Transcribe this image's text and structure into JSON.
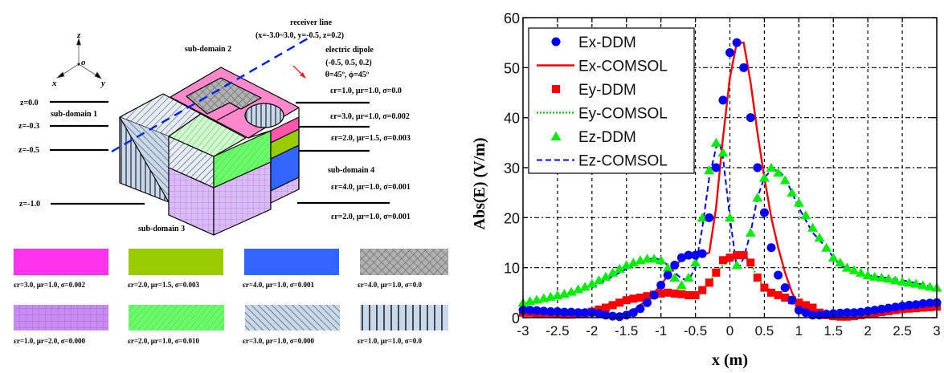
{
  "diagram": {
    "axes": {
      "z": "z",
      "o": "o",
      "x": "x",
      "y": "y"
    },
    "depth_labels": [
      "z=0.0",
      "z=-0.3",
      "z=-0.5",
      "z=-1.0"
    ],
    "subdomain_labels": [
      "sub-domain 1",
      "sub-domain 2",
      "sub-domain 3",
      "sub-domain 4"
    ],
    "receiver": {
      "title": "receiver line",
      "coords": "(x=-3.0~3.0, y=-0.5, z=0.2)"
    },
    "dipole": {
      "title": "electric dipole",
      "coords": "(-0.5, 0.5, 0.2)",
      "angles": "θ=45º, ϕ=45º"
    },
    "layer_properties": [
      "εr=1.0, μr=1.0, σ=0.0",
      "εr=3.0, μr=1.0, σ=0.002",
      "εr=2.0, μr=1.5, σ=0.003",
      "εr=4.0, μr=1.0, σ=0.001",
      "εr=2.0, μr=1.0, σ=0.001"
    ],
    "material_legend": [
      {
        "pattern": "solid",
        "color": "#ff33ee",
        "label": "εr=3.0, μr=1.0, σ=0.002"
      },
      {
        "pattern": "solid",
        "color": "#99cc00",
        "label": "εr=2.0, μr=1.5, σ=0.003"
      },
      {
        "pattern": "solid",
        "color": "#3366ff",
        "label": "εr=4.0, μr=1.0, σ=0.001"
      },
      {
        "pattern": "crosshatch",
        "color": "#b0b0b0",
        "label": "εr=4.0, μr=1.0, σ=0.0"
      },
      {
        "pattern": "grid",
        "color": "#cc88ff",
        "label": "εr=1.0, μr=2.0, σ=0.000"
      },
      {
        "pattern": "diagonal",
        "color": "#66ff66",
        "label": "εr=2.0, μr=1.0, σ=0.010"
      },
      {
        "pattern": "diagonal-back",
        "color": "#c8d8ec",
        "label": "εr=3.0, μr=1.0, σ=0.000"
      },
      {
        "pattern": "vertical",
        "color": "#c8d8ec",
        "label": "εr=1.0, μr=1.0, σ=0.0"
      }
    ]
  },
  "chart_data": {
    "type": "line",
    "title": "",
    "xlabel": "x (m)",
    "ylabel": "Abs(E) (V/m)",
    "xlim": [
      -3,
      3
    ],
    "ylim": [
      0,
      60
    ],
    "xticks": [
      "-3",
      "-2.5",
      "-2",
      "-1.5",
      "-1",
      "-0.5",
      "0",
      "0.5",
      "1",
      "1.5",
      "2",
      "2.5",
      "3"
    ],
    "yticks": [
      "0",
      "10",
      "20",
      "30",
      "40",
      "50",
      "60"
    ],
    "grid": true,
    "legend_position": "top-left",
    "series": [
      {
        "name": "Ex-DDM",
        "style": "marker-circle",
        "color": "#0000ff",
        "x": [
          -3,
          -2.9,
          -2.8,
          -2.7,
          -2.6,
          -2.5,
          -2.4,
          -2.3,
          -2.2,
          -2.1,
          -2,
          -1.9,
          -1.8,
          -1.7,
          -1.6,
          -1.5,
          -1.4,
          -1.3,
          -1.2,
          -1.1,
          -1,
          -0.9,
          -0.8,
          -0.7,
          -0.6,
          -0.5,
          -0.4,
          -0.3,
          -0.2,
          -0.1,
          0,
          0.1,
          0.2,
          0.3,
          0.4,
          0.5,
          0.6,
          0.7,
          0.8,
          0.9,
          1,
          1.1,
          1.2,
          1.3,
          1.4,
          1.5,
          1.6,
          1.7,
          1.8,
          1.9,
          2,
          2.1,
          2.2,
          2.3,
          2.4,
          2.5,
          2.6,
          2.7,
          2.8,
          2.9,
          3
        ],
        "y": [
          1.5,
          1.5,
          1.4,
          1.3,
          1.2,
          1.2,
          1.1,
          1.1,
          1.0,
          1.0,
          1.0,
          0.8,
          0.5,
          0.3,
          0.2,
          0.5,
          1.0,
          1.8,
          3.0,
          4.5,
          6.5,
          8.5,
          10.5,
          12.0,
          12.5,
          12.5,
          12.8,
          20,
          30,
          43.5,
          53,
          55,
          50,
          40,
          30,
          21,
          14,
          8.5,
          6,
          3.5,
          1.5,
          1.0,
          0.5,
          0.5,
          0.7,
          0.8,
          0.9,
          1.0,
          1.0,
          1.1,
          1.3,
          1.5,
          1.7,
          1.9,
          2.1,
          2.3,
          2.5,
          2.6,
          2.8,
          2.9,
          3.0
        ]
      },
      {
        "name": "Ex-COMSOL",
        "style": "line-solid",
        "color": "#ff0000",
        "x": [
          -3,
          -2.5,
          -2,
          -1.8,
          -1.6,
          -1.4,
          -1.2,
          -1,
          -0.8,
          -0.6,
          -0.4,
          -0.3,
          -0.2,
          -0.1,
          0,
          0.1,
          0.2,
          0.3,
          0.4,
          0.5,
          0.6,
          0.7,
          0.8,
          0.9,
          1,
          1.1,
          1.2,
          1.4,
          1.6,
          1.8,
          2,
          2.5,
          3
        ],
        "y": [
          1.2,
          1.0,
          0.9,
          0.6,
          0.6,
          1.5,
          3.5,
          6.5,
          10.5,
          12.5,
          12.5,
          13,
          22,
          36,
          48,
          55,
          55,
          47,
          37,
          28,
          20,
          14,
          9,
          5,
          2.5,
          1.5,
          1.0,
          0.6,
          0.6,
          0.8,
          1.2,
          2,
          2.5
        ]
      },
      {
        "name": "Ey-DDM",
        "style": "marker-square",
        "color": "#ff0000",
        "x": [
          -3,
          -2.9,
          -2.8,
          -2.7,
          -2.6,
          -2.5,
          -2.4,
          -2.3,
          -2.2,
          -2.1,
          -2,
          -1.9,
          -1.8,
          -1.7,
          -1.6,
          -1.5,
          -1.4,
          -1.3,
          -1.2,
          -1.1,
          -1,
          -0.9,
          -0.8,
          -0.7,
          -0.6,
          -0.5,
          -0.4,
          -0.3,
          -0.2,
          -0.1,
          0,
          0.1,
          0.2,
          0.3,
          0.4,
          0.5,
          0.6,
          0.7,
          0.8,
          0.9,
          1,
          1.1,
          1.2,
          1.3,
          1.4,
          1.5,
          1.6,
          1.7,
          1.8,
          1.9,
          2,
          2.1,
          2.2,
          2.3,
          2.4,
          2.5,
          2.6,
          2.7,
          2.8,
          2.9,
          3
        ],
        "y": [
          1.0,
          1.0,
          0.9,
          0.9,
          0.8,
          0.7,
          0.6,
          0.6,
          0.7,
          0.9,
          1.2,
          1.6,
          2.0,
          2.5,
          3.0,
          3.5,
          3.8,
          4.0,
          4.3,
          4.6,
          4.8,
          5.0,
          4.8,
          4.7,
          4.5,
          4.5,
          5.5,
          7,
          9,
          11.5,
          12,
          12.5,
          12.5,
          11,
          8,
          6,
          5,
          4.5,
          4,
          3.5,
          3.0,
          2.5,
          2.0,
          1.0,
          0.5,
          0.3,
          0.2,
          0.2,
          0.3,
          0.5,
          0.7,
          0.9,
          1.1,
          1.3,
          1.5,
          1.7,
          1.8,
          1.9,
          2.0,
          2.1,
          2.2
        ]
      },
      {
        "name": "Ey-COMSOL",
        "style": "line-dotted",
        "color": "#00cc00",
        "x": [
          -3,
          -2.5,
          -2,
          -1.8,
          -1.6,
          -1.4,
          -1.2,
          -1,
          -0.8,
          -0.6,
          -0.4,
          -0.3,
          -0.2,
          -0.1,
          0,
          0.1,
          0.2,
          0.3,
          0.4,
          0.5,
          0.6,
          0.8,
          1,
          1.2,
          1.4,
          1.6,
          1.8,
          2,
          2.5,
          3
        ],
        "y": [
          0.8,
          0.7,
          1.2,
          2.5,
          3.5,
          4,
          4.5,
          5,
          5.2,
          5,
          5,
          7,
          9,
          10.5,
          11.5,
          12.5,
          12.5,
          11,
          8,
          6,
          5.5,
          4.5,
          3.5,
          2,
          1,
          0.5,
          0.3,
          1,
          1.8,
          2.2
        ]
      },
      {
        "name": "Ez-DDM",
        "style": "marker-triangle",
        "color": "#00ee00",
        "x": [
          -3,
          -2.9,
          -2.8,
          -2.7,
          -2.6,
          -2.5,
          -2.4,
          -2.3,
          -2.2,
          -2.1,
          -2,
          -1.9,
          -1.8,
          -1.7,
          -1.6,
          -1.5,
          -1.4,
          -1.3,
          -1.2,
          -1.1,
          -1,
          -0.9,
          -0.8,
          -0.7,
          -0.6,
          -0.5,
          -0.4,
          -0.3,
          -0.2,
          -0.1,
          0,
          0.1,
          0.2,
          0.3,
          0.4,
          0.5,
          0.6,
          0.7,
          0.8,
          0.9,
          1,
          1.1,
          1.2,
          1.3,
          1.4,
          1.5,
          1.6,
          1.7,
          1.8,
          1.9,
          2,
          2.1,
          2.2,
          2.3,
          2.4,
          2.5,
          2.6,
          2.7,
          2.8,
          2.9,
          3
        ],
        "y": [
          3,
          3.3,
          3.6,
          3.9,
          4.2,
          4.5,
          4.8,
          5.2,
          5.7,
          6.2,
          6.8,
          7.5,
          8.2,
          9,
          9.8,
          10.5,
          11,
          11.5,
          11.8,
          11.8,
          11.5,
          10,
          8,
          6.5,
          8,
          11,
          20,
          29.5,
          35,
          33,
          20,
          10.5,
          12.5,
          17,
          24,
          28,
          30,
          29,
          27.5,
          25,
          23,
          20.5,
          18,
          16,
          14,
          12,
          11,
          10,
          9.5,
          9,
          8.5,
          8.2,
          8,
          7.8,
          7.5,
          7.2,
          7,
          6.8,
          6.5,
          6.2,
          6
        ]
      },
      {
        "name": "Ez-COMSOL",
        "style": "line-dashed",
        "color": "#0000ff",
        "x": [
          -3,
          -2.5,
          -2,
          -1.8,
          -1.6,
          -1.4,
          -1.2,
          -1.1,
          -1,
          -0.9,
          -0.8,
          -0.7,
          -0.6,
          -0.5,
          -0.4,
          -0.3,
          -0.2,
          -0.15,
          -0.1,
          0,
          0.1,
          0.15,
          0.2,
          0.3,
          0.4,
          0.5,
          0.6,
          0.7,
          0.8,
          0.9,
          1,
          1.2,
          1.4,
          1.5,
          1.6,
          1.8,
          2,
          2.5,
          3
        ],
        "y": [
          2.5,
          4,
          6,
          7.5,
          9,
          10.5,
          11.5,
          12,
          11.5,
          10.5,
          9,
          7.8,
          7.5,
          10,
          18,
          28,
          34,
          35,
          32,
          20,
          10,
          10.5,
          12,
          17,
          24,
          28,
          29.5,
          29.5,
          28,
          25,
          22,
          17,
          14,
          12,
          10.5,
          9,
          8.5,
          7.5,
          6
        ]
      }
    ]
  }
}
